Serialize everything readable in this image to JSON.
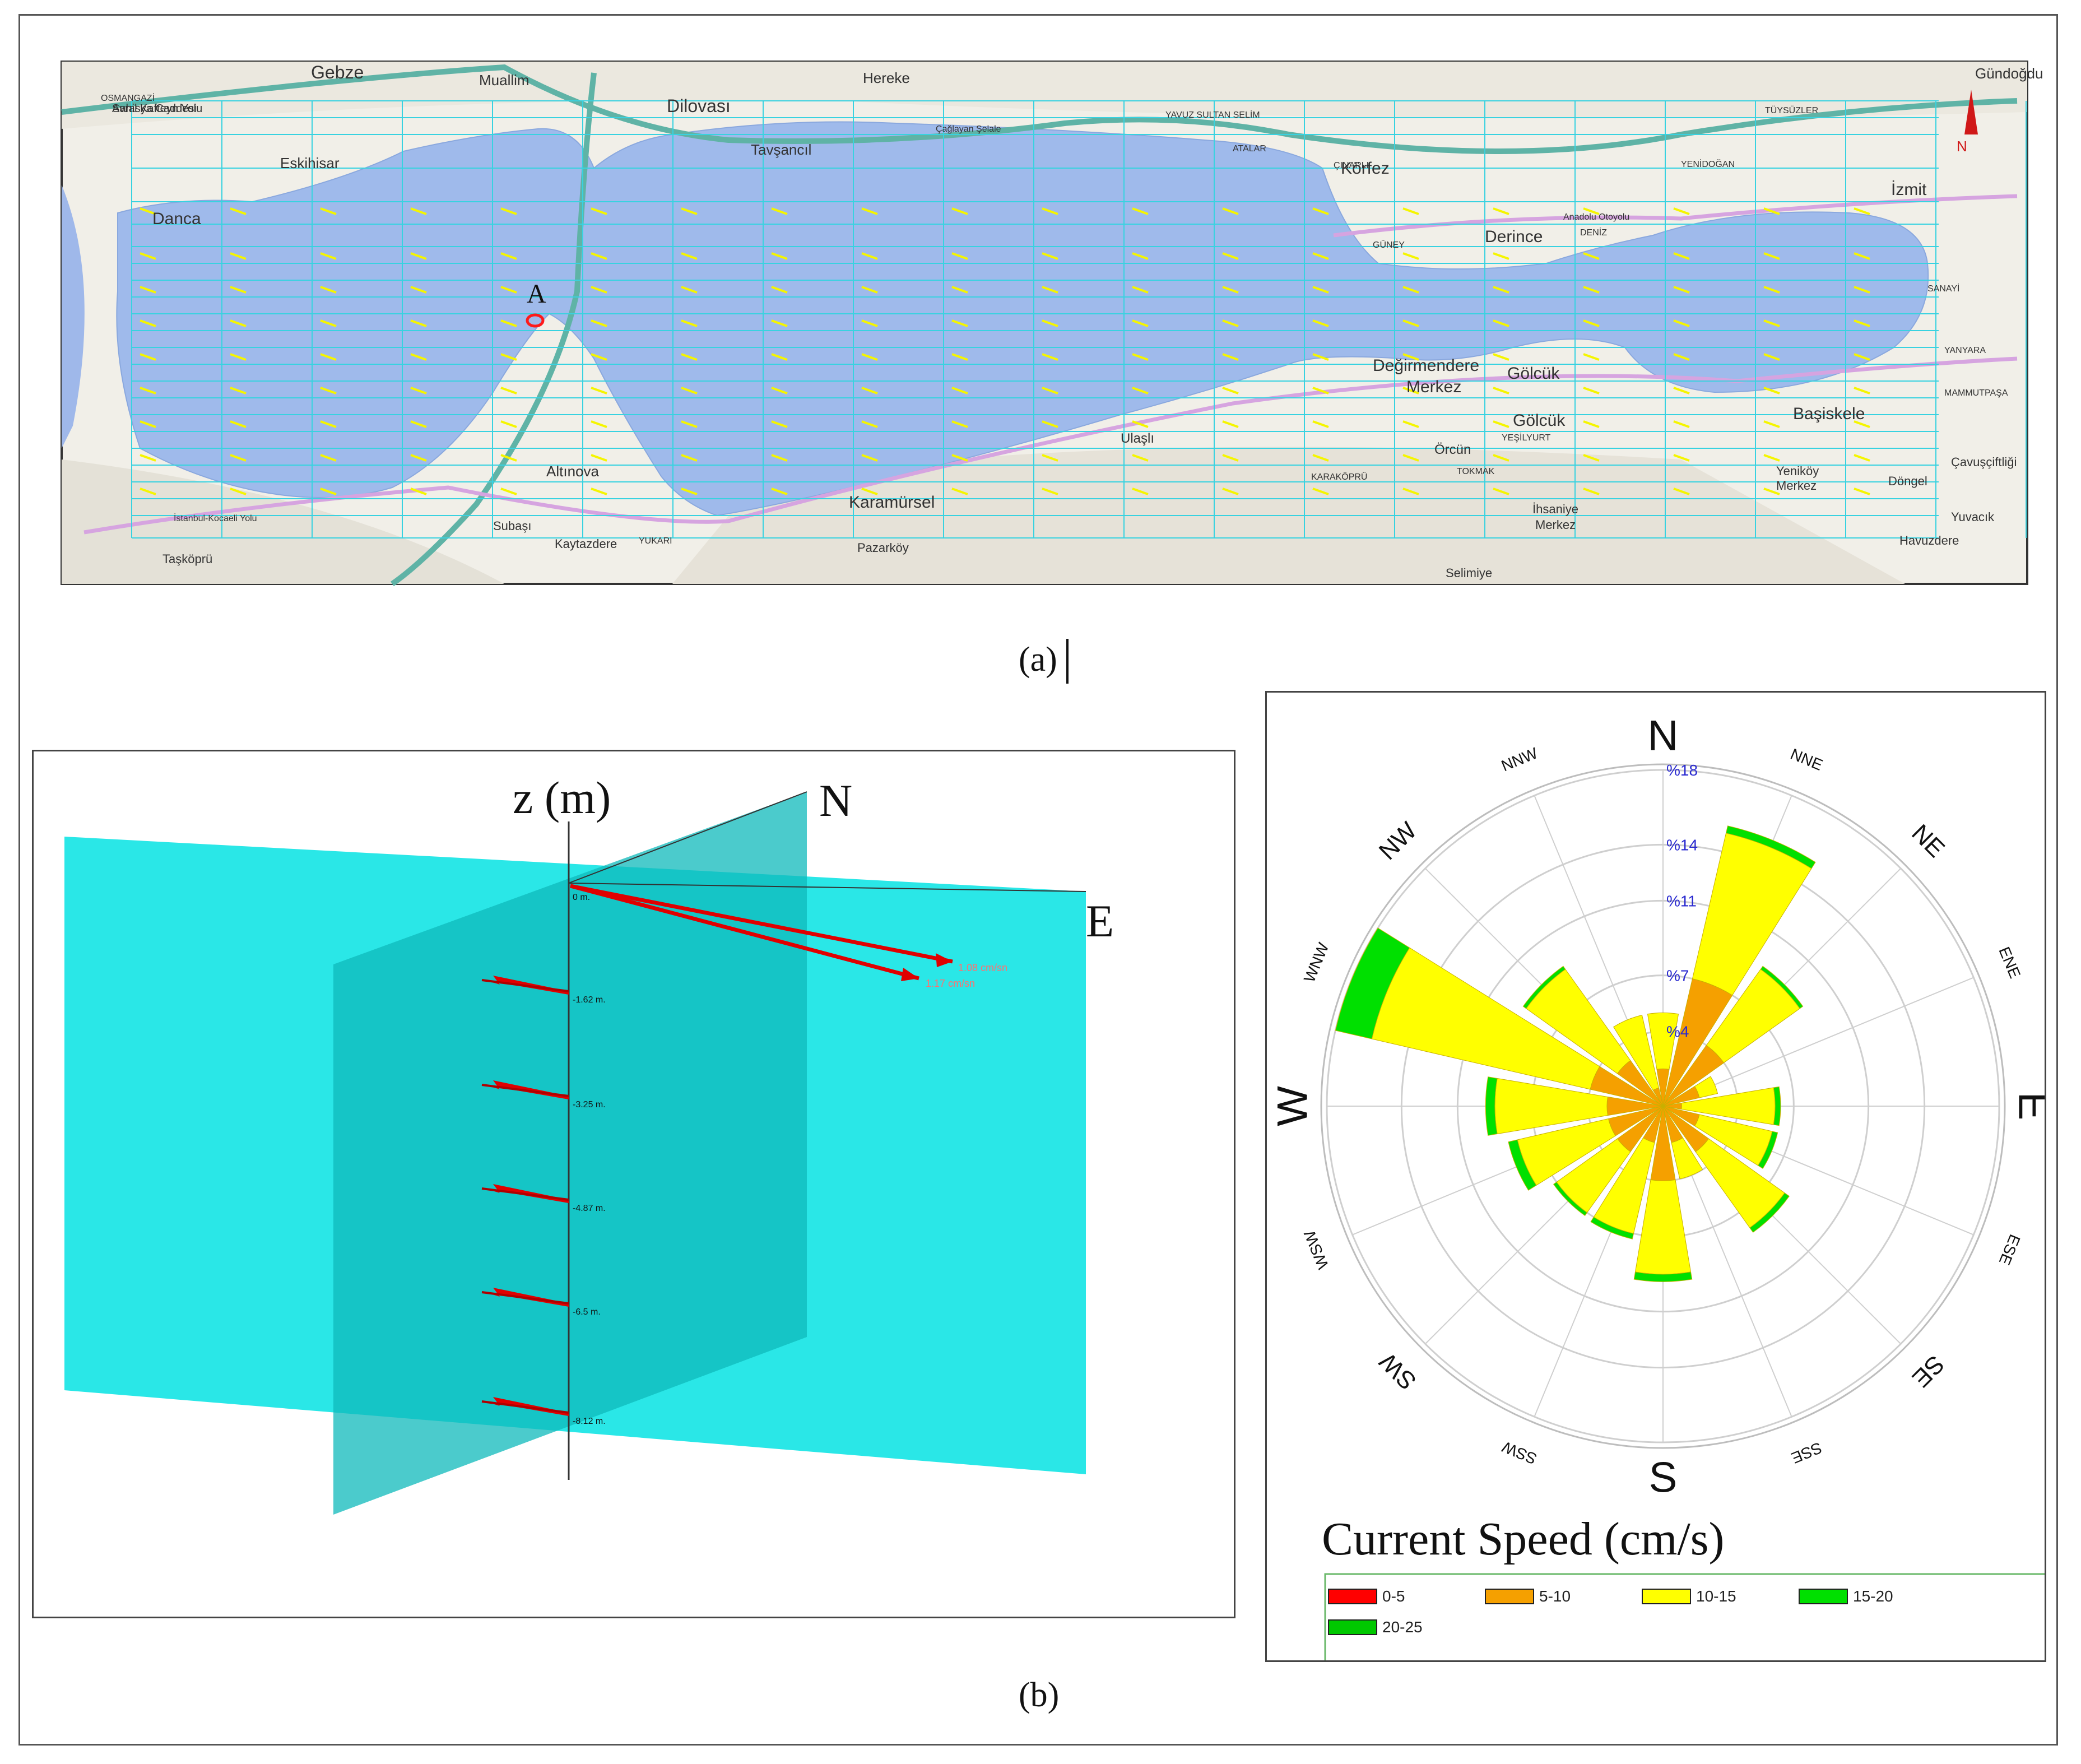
{
  "map": {
    "point_label": "A",
    "north_label": "N",
    "places": [
      {
        "name": "Gebze"
      },
      {
        "name": "Muallim"
      },
      {
        "name": "Dilovası"
      },
      {
        "name": "Hereke"
      },
      {
        "name": "Gündoğdu"
      },
      {
        "name": "OSMANGAZİ"
      },
      {
        "name": "Eskihisar"
      },
      {
        "name": "Tavşancıl"
      },
      {
        "name": "Danca"
      },
      {
        "name": "Körfez"
      },
      {
        "name": "Derince"
      },
      {
        "name": "İzmit"
      },
      {
        "name": "Değirmendere"
      },
      {
        "name": "Merkez"
      },
      {
        "name": "Gölcük"
      },
      {
        "name": "Gölcük"
      },
      {
        "name": "Başiskele"
      },
      {
        "name": "Altınova"
      },
      {
        "name": "Karamürsel"
      },
      {
        "name": "Ulaşlı"
      },
      {
        "name": "Örcün"
      },
      {
        "name": "Çavuşçiftliği"
      },
      {
        "name": "Yeniköy"
      },
      {
        "name": "Merkez"
      },
      {
        "name": "Döngel"
      },
      {
        "name": "Yuvacık"
      },
      {
        "name": "İhsaniye"
      },
      {
        "name": "Merkez"
      },
      {
        "name": "Subaşı"
      },
      {
        "name": "Kaytazdere"
      },
      {
        "name": "Taşköprü"
      },
      {
        "name": "Pazarköy"
      },
      {
        "name": "Havuzdere"
      },
      {
        "name": "Selimiye"
      },
      {
        "name": "YAVUZ SULTAN SELİM"
      },
      {
        "name": "ATALAR"
      },
      {
        "name": "ÇINARLI"
      },
      {
        "name": "YENİDOĞAN"
      },
      {
        "name": "TÜYSÜZLER"
      },
      {
        "name": "DENİZ"
      },
      {
        "name": "GÜNEY"
      },
      {
        "name": "SANAYİ"
      },
      {
        "name": "YANYARA"
      },
      {
        "name": "MAMMUTPAŞA"
      },
      {
        "name": "YEŞİLYURT"
      },
      {
        "name": "KARAKÖPRÜ"
      },
      {
        "name": "YUKARI"
      },
      {
        "name": "TOKMAK"
      },
      {
        "name": "Çağlayan Şelale"
      },
      {
        "name": "Anadolu Otoyolu"
      },
      {
        "name": "İstanbul-Kocaeli Yolu"
      },
      {
        "name": "Sahil Kafteyn Yolu"
      },
      {
        "name": "Avrasya Caddesi"
      }
    ]
  },
  "caption_a": "(a)",
  "caption_b": "(b)",
  "profile3d": {
    "axis_z": "z (m)",
    "axis_n": "N",
    "axis_e": "E",
    "levels": [
      {
        "depth": "0 m.",
        "label_a": "1.08 cm/sn",
        "label_b": "1.17 cm/sn"
      },
      {
        "depth": "-1.62 m.",
        "label_a": "",
        "label_b": ""
      },
      {
        "depth": "-3.25 m.",
        "label_a": "",
        "label_b": ""
      },
      {
        "depth": "-4.87 m.",
        "label_a": "",
        "label_b": ""
      },
      {
        "depth": "-6.5 m.",
        "label_a": "",
        "label_b": ""
      },
      {
        "depth": "-8.12 m.",
        "label_a": "",
        "label_b": ""
      }
    ]
  },
  "chart_data": {
    "type": "windrose",
    "title": "Current Speed (cm/s)",
    "directions": [
      "N",
      "NNE",
      "NE",
      "ENE",
      "E",
      "ESE",
      "SE",
      "SSE",
      "S",
      "SSW",
      "SW",
      "WSW",
      "W",
      "WNW",
      "NW",
      "NNW"
    ],
    "radial_ticks": [
      "%4",
      "%7",
      "%11",
      "%14",
      "%18"
    ],
    "radial_max": 18,
    "bins": [
      {
        "name": "0-5",
        "color": "#ff0000",
        "values": [
          0,
          0,
          0,
          0,
          0,
          0,
          0,
          0,
          0,
          0,
          0,
          0,
          0,
          0,
          0,
          0
        ]
      },
      {
        "name": "5-10",
        "color": "#f5a000",
        "values": [
          2,
          7,
          4,
          2,
          1,
          2,
          3,
          2,
          4,
          2,
          3,
          3,
          3,
          4,
          3,
          1
        ]
      },
      {
        "name": "10-15",
        "color": "#ffff00",
        "values": [
          3,
          8,
          5,
          1,
          5,
          4,
          5,
          2,
          5,
          5,
          4,
          5,
          6,
          12,
          6,
          4
        ]
      },
      {
        "name": "15-20",
        "color": "#00e000",
        "values": [
          0,
          0.4,
          0.2,
          0,
          0.3,
          0.3,
          0.3,
          0,
          0.4,
          0.3,
          0.2,
          0.5,
          0.5,
          2,
          0.2,
          0
        ]
      },
      {
        "name": "20-25",
        "color": "#00c800",
        "values": [
          0,
          0,
          0,
          0,
          0,
          0,
          0,
          0,
          0,
          0,
          0,
          0,
          0,
          0,
          0,
          0
        ]
      }
    ]
  }
}
